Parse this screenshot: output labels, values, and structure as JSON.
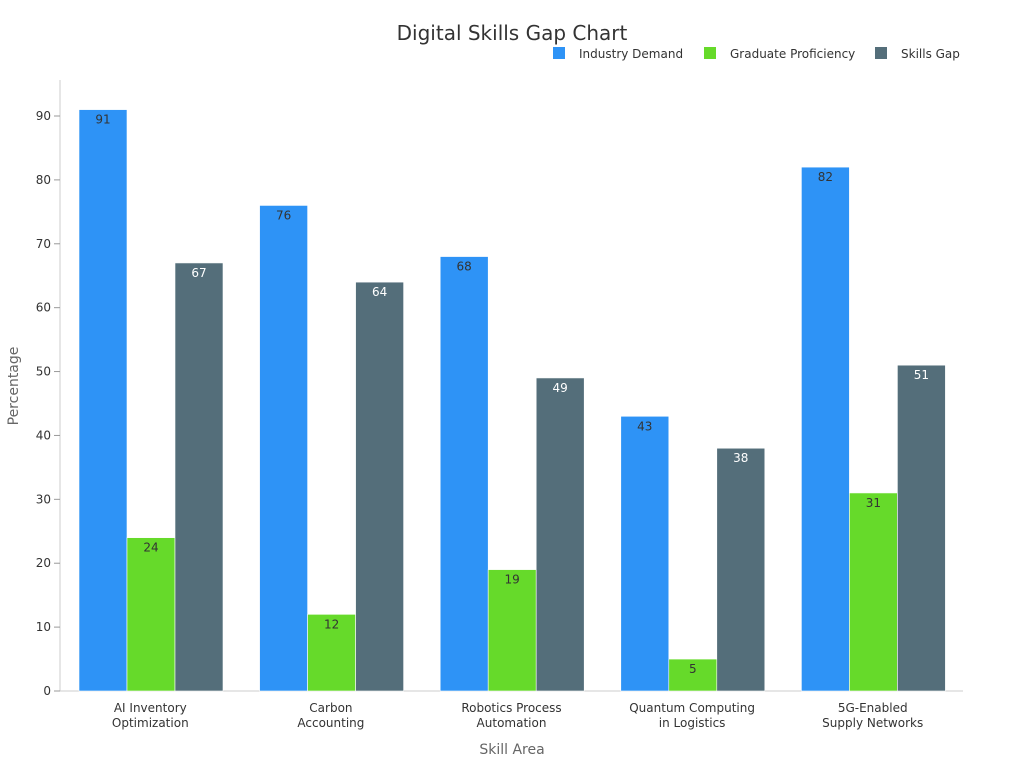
{
  "chart_data": {
    "type": "bar",
    "title": "Digital Skills Gap Chart",
    "xlabel": "Skill Area",
    "ylabel": "Percentage",
    "categories": [
      [
        "AI Inventory",
        "Optimization"
      ],
      [
        "Carbon",
        "Accounting"
      ],
      [
        "Robotics Process",
        "Automation"
      ],
      [
        "Quantum Computing",
        "in Logistics"
      ],
      [
        "5G-Enabled",
        "Supply Networks"
      ]
    ],
    "series": [
      {
        "name": "Industry Demand",
        "color": "#2e93f6",
        "label_color": "#333333",
        "values": [
          91,
          76,
          68,
          43,
          82
        ]
      },
      {
        "name": "Graduate Proficiency",
        "color": "#66da2a",
        "label_color": "#333333",
        "values": [
          24,
          12,
          19,
          5,
          31
        ]
      },
      {
        "name": "Skills Gap",
        "color": "#546e7a",
        "label_color": "#ffffff",
        "values": [
          67,
          64,
          49,
          38,
          51
        ]
      }
    ],
    "ylim": [
      0,
      95
    ],
    "yticks": [
      0,
      10,
      20,
      30,
      40,
      50,
      60,
      70,
      80,
      90
    ],
    "grid": false,
    "legend": "top-right"
  }
}
